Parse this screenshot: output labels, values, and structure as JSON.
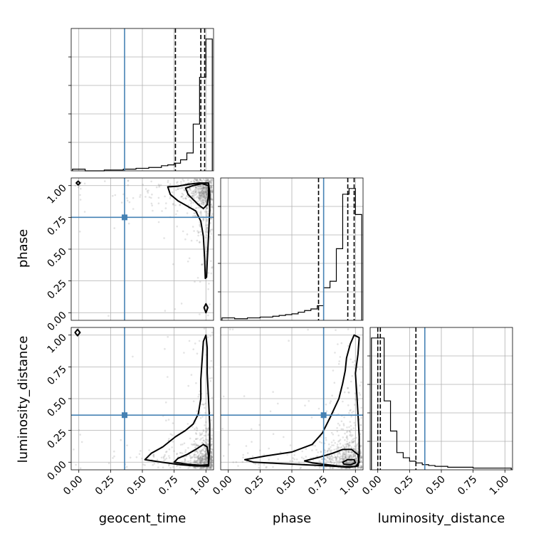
{
  "chart_data": {
    "type": "corner",
    "parameters": [
      "geocent_time",
      "phase",
      "luminosity_distance"
    ],
    "truths": {
      "geocent_time": 0.36,
      "phase": 0.75,
      "luminosity_distance": 0.37
    },
    "quantiles": {
      "geocent_time": [
        0.76,
        0.96,
        0.99
      ],
      "phase": [
        0.71,
        0.94,
        0.99
      ],
      "luminosity_distance": [
        0.0,
        0.02,
        0.3
      ]
    },
    "axis_range": [
      -0.06,
      1.06
    ],
    "ticks": [
      0,
      0.25,
      0.5,
      0.75,
      1
    ],
    "tick_labels": [
      "0.00",
      "0.25",
      "0.50",
      "0.75",
      "1.00"
    ],
    "histograms": {
      "geocent_time": {
        "edges": [
          -0.05,
          0.0,
          0.05,
          0.1,
          0.15,
          0.2,
          0.25,
          0.3,
          0.35,
          0.4,
          0.45,
          0.5,
          0.55,
          0.6,
          0.65,
          0.7,
          0.75,
          0.8,
          0.85,
          0.9,
          0.95,
          1.0,
          1.05
        ],
        "values": [
          2,
          2,
          0,
          0,
          0,
          1,
          1,
          1,
          2,
          2,
          3,
          3,
          4,
          4,
          6,
          7,
          9,
          13,
          21,
          55,
          110,
          155
        ]
      },
      "phase": {
        "edges": [
          -0.05,
          0.0,
          0.05,
          0.1,
          0.15,
          0.2,
          0.25,
          0.3,
          0.35,
          0.4,
          0.45,
          0.5,
          0.55,
          0.6,
          0.65,
          0.7,
          0.75,
          0.8,
          0.85,
          0.9,
          0.95,
          1.0,
          1.05
        ],
        "values": [
          3,
          3,
          2,
          2,
          3,
          3,
          4,
          4,
          5,
          6,
          7,
          8,
          10,
          12,
          14,
          18,
          40,
          48,
          88,
          155,
          162,
          130
        ]
      },
      "luminosity_distance": {
        "edges": [
          -0.05,
          0.0,
          0.05,
          0.1,
          0.15,
          0.2,
          0.25,
          0.3,
          0.35,
          0.4,
          0.45,
          0.5,
          0.55,
          0.6,
          0.65,
          0.7,
          0.75,
          0.8,
          0.85,
          0.9,
          0.95,
          1.0,
          1.05
        ],
        "values": [
          153,
          153,
          80,
          45,
          20,
          14,
          10,
          8,
          6,
          5,
          4,
          4,
          3,
          3,
          3,
          3,
          2,
          2,
          2,
          2,
          2,
          2
        ]
      }
    },
    "contours": {
      "phase_vs_geocent_time": [
        [
          [
            0.7,
            0.99
          ],
          [
            0.78,
            0.995
          ],
          [
            0.86,
            1.01
          ],
          [
            0.95,
            1.02
          ],
          [
            1.02,
            1.02
          ],
          [
            1.03,
            0.95
          ],
          [
            1.03,
            0.8
          ],
          [
            1.02,
            0.6
          ],
          [
            1.01,
            0.4
          ],
          [
            1.005,
            0.28
          ],
          [
            0.995,
            0.27
          ],
          [
            0.99,
            0.42
          ],
          [
            0.98,
            0.6
          ],
          [
            0.96,
            0.72
          ],
          [
            0.92,
            0.8
          ],
          [
            0.85,
            0.84
          ],
          [
            0.78,
            0.88
          ],
          [
            0.72,
            0.93
          ],
          [
            0.7,
            0.99
          ]
        ],
        [
          [
            0.84,
            0.98
          ],
          [
            0.9,
            1.0
          ],
          [
            0.97,
            1.015
          ],
          [
            1.02,
            1.0
          ],
          [
            1.02,
            0.92
          ],
          [
            1.01,
            0.85
          ],
          [
            0.98,
            0.82
          ],
          [
            0.94,
            0.85
          ],
          [
            0.9,
            0.89
          ],
          [
            0.86,
            0.93
          ],
          [
            0.84,
            0.98
          ]
        ],
        [
          [
            0.985,
            0.04
          ],
          [
            1.0,
            0.07
          ],
          [
            1.015,
            0.04
          ],
          [
            1.0,
            -0.0
          ],
          [
            0.985,
            0.04
          ]
        ],
        [
          [
            -0.02,
            1.02
          ],
          [
            -0.005,
            1.035
          ],
          [
            0.01,
            1.02
          ],
          [
            -0.005,
            1.005
          ],
          [
            -0.02,
            1.02
          ]
        ]
      ],
      "luminosity_distance_vs_geocent_time": [
        [
          [
            0.52,
            0.02
          ],
          [
            0.65,
            0.0
          ],
          [
            0.8,
            -0.02
          ],
          [
            0.92,
            -0.03
          ],
          [
            1.02,
            -0.03
          ],
          [
            1.03,
            0.1
          ],
          [
            1.03,
            0.3
          ],
          [
            1.02,
            0.5
          ],
          [
            1.01,
            0.7
          ],
          [
            1.01,
            0.9
          ],
          [
            1.0,
            1.0
          ],
          [
            0.98,
            0.95
          ],
          [
            0.97,
            0.8
          ],
          [
            0.96,
            0.65
          ],
          [
            0.96,
            0.5
          ],
          [
            0.94,
            0.38
          ],
          [
            0.9,
            0.3
          ],
          [
            0.84,
            0.25
          ],
          [
            0.76,
            0.2
          ],
          [
            0.66,
            0.12
          ],
          [
            0.57,
            0.07
          ],
          [
            0.52,
            0.02
          ]
        ],
        [
          [
            0.75,
            0.0
          ],
          [
            0.85,
            -0.015
          ],
          [
            0.96,
            -0.025
          ],
          [
            1.02,
            -0.02
          ],
          [
            1.02,
            0.05
          ],
          [
            1.01,
            0.12
          ],
          [
            0.98,
            0.14
          ],
          [
            0.92,
            0.1
          ],
          [
            0.85,
            0.06
          ],
          [
            0.78,
            0.03
          ],
          [
            0.75,
            0.0
          ]
        ],
        [
          [
            -0.03,
            1.02
          ],
          [
            -0.01,
            1.045
          ],
          [
            0.01,
            1.02
          ],
          [
            -0.01,
            0.995
          ],
          [
            -0.03,
            1.02
          ]
        ]
      ],
      "luminosity_distance_vs_phase": [
        [
          [
            0.13,
            0.02
          ],
          [
            0.3,
            0.05
          ],
          [
            0.5,
            0.08
          ],
          [
            0.66,
            0.14
          ],
          [
            0.74,
            0.23
          ],
          [
            0.8,
            0.35
          ],
          [
            0.87,
            0.5
          ],
          [
            0.9,
            0.62
          ],
          [
            0.92,
            0.72
          ],
          [
            0.93,
            0.82
          ],
          [
            0.96,
            0.93
          ],
          [
            0.99,
            1.0
          ],
          [
            1.03,
            0.98
          ],
          [
            1.02,
            0.85
          ],
          [
            1.0,
            0.7
          ],
          [
            1.01,
            0.55
          ],
          [
            1.02,
            0.38
          ],
          [
            1.03,
            0.2
          ],
          [
            1.03,
            0.05
          ],
          [
            1.02,
            -0.03
          ],
          [
            0.95,
            -0.04
          ],
          [
            0.8,
            -0.03
          ],
          [
            0.6,
            -0.02
          ],
          [
            0.4,
            -0.01
          ],
          [
            0.2,
            0.0
          ],
          [
            0.13,
            0.02
          ]
        ],
        [
          [
            0.6,
            0.01
          ],
          [
            0.72,
            0.04
          ],
          [
            0.82,
            0.07
          ],
          [
            0.9,
            0.1
          ],
          [
            0.97,
            0.1
          ],
          [
            1.02,
            0.06
          ],
          [
            1.03,
            0.0
          ],
          [
            1.0,
            -0.035
          ],
          [
            0.9,
            -0.035
          ],
          [
            0.78,
            -0.02
          ],
          [
            0.66,
            -0.005
          ],
          [
            0.6,
            0.01
          ]
        ],
        [
          [
            0.9,
            0.0
          ],
          [
            0.94,
            0.02
          ],
          [
            0.99,
            0.02
          ],
          [
            1.0,
            -0.005
          ],
          [
            0.96,
            -0.02
          ],
          [
            0.91,
            -0.015
          ],
          [
            0.9,
            0.0
          ]
        ]
      ]
    }
  }
}
